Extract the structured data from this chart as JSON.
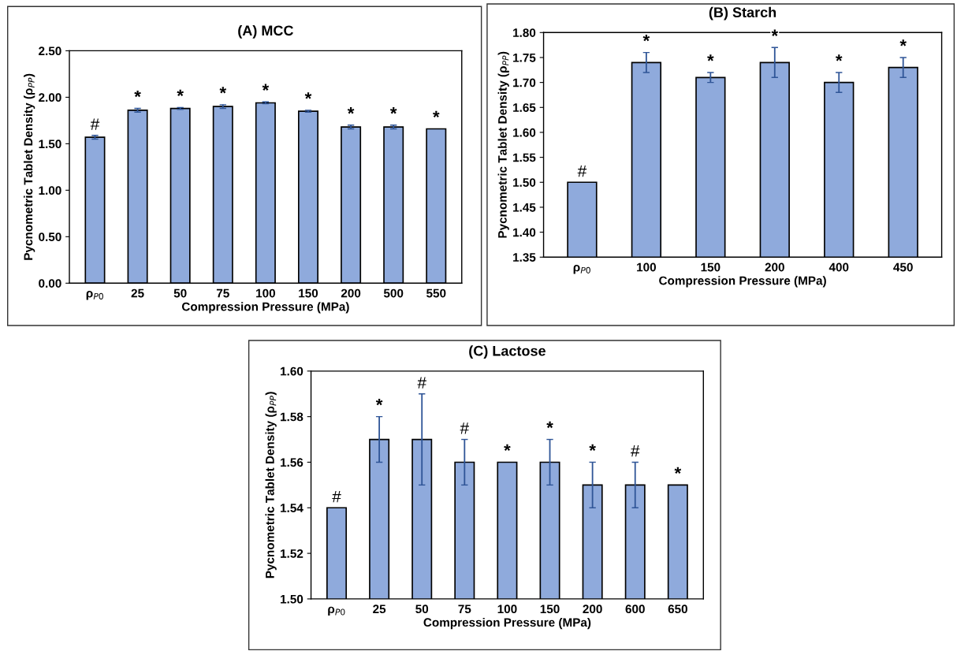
{
  "chart_data": [
    {
      "type": "bar",
      "title": "(A) MCC",
      "xlabel": "Compression Pressure (MPa)",
      "ylabel": "Pycnometric Tablet Density (ρ$_{PP}$)",
      "categories": [
        "ρ$_{P0}$",
        "25",
        "50",
        "75",
        "100",
        "150",
        "200",
        "500",
        "550"
      ],
      "values": [
        1.57,
        1.86,
        1.88,
        1.9,
        1.94,
        1.85,
        1.68,
        1.68,
        1.66
      ],
      "errors": [
        0.02,
        0.02,
        0.01,
        0.02,
        0.01,
        0.01,
        0.02,
        0.02,
        null
      ],
      "color": "#8faadc",
      "ylim": [
        0,
        2.5
      ],
      "yticks": [
        {
          "value": 0,
          "label": "0.00"
        },
        {
          "value": 0.5,
          "label": "0.50"
        },
        {
          "value": 1,
          "label": "1.00"
        },
        {
          "value": 1.5,
          "label": "1.50"
        },
        {
          "value": 2,
          "label": "2.00"
        },
        {
          "value": 2.5,
          "label": "2.50"
        }
      ],
      "grid": false,
      "annotations": [
        {
          "text": "#",
          "x": "ρ$_{P0}$",
          "y": 1.59
        },
        {
          "text": "*",
          "x": "25",
          "y": 1.88
        },
        {
          "text": "*",
          "x": "50",
          "y": 1.89
        },
        {
          "text": "*",
          "x": "75",
          "y": 1.92
        },
        {
          "text": "*",
          "x": "100",
          "y": 1.95
        },
        {
          "text": "*",
          "x": "150",
          "y": 1.86
        },
        {
          "text": "*",
          "x": "200",
          "y": 1.7
        },
        {
          "text": "*",
          "x": "500",
          "y": 1.7
        },
        {
          "text": "*",
          "x": "550",
          "y": 1.66
        }
      ]
    },
    {
      "type": "bar",
      "title": "(B) Starch",
      "xlabel": "Compression Pressure (MPa)",
      "ylabel": "Pycnometric Tablet Density (ρ$_{PP}$)",
      "categories": [
        "ρ$_{P0}$",
        "100",
        "150",
        "200",
        "400",
        "450"
      ],
      "values": [
        1.5,
        1.74,
        1.71,
        1.74,
        1.7,
        1.73
      ],
      "errors": [
        null,
        0.02,
        0.01,
        0.03,
        0.02,
        0.02
      ],
      "color": "#8faadc",
      "ylim": [
        1.35,
        1.8
      ],
      "yticks": [
        {
          "value": 1.35,
          "label": "1.35"
        },
        {
          "value": 1.4,
          "label": "1.40"
        },
        {
          "value": 1.45,
          "label": "1.45"
        },
        {
          "value": 1.5,
          "label": "1.50"
        },
        {
          "value": 1.55,
          "label": "1.55"
        },
        {
          "value": 1.6,
          "label": "1.60"
        },
        {
          "value": 1.65,
          "label": "1.65"
        },
        {
          "value": 1.7,
          "label": "1.70"
        },
        {
          "value": 1.75,
          "label": "1.75"
        },
        {
          "value": 1.8,
          "label": "1.80"
        }
      ],
      "grid": false,
      "annotations": [
        {
          "text": "#",
          "x": "ρ$_{P0}$",
          "y": 1.5
        },
        {
          "text": "*",
          "x": "100",
          "y": 1.76
        },
        {
          "text": "*",
          "x": "150",
          "y": 1.72
        },
        {
          "text": "*",
          "x": "200",
          "y": 1.77
        },
        {
          "text": "*",
          "x": "400",
          "y": 1.72
        },
        {
          "text": "*",
          "x": "450",
          "y": 1.75
        }
      ]
    },
    {
      "type": "bar",
      "title": "(C) Lactose",
      "xlabel": "Compression Pressure (MPa)",
      "ylabel": "Pycnometric Tablet Density (ρ$_{PP}$)",
      "categories": [
        "ρ$_{P0}$",
        "25",
        "50",
        "75",
        "100",
        "150",
        "200",
        "600",
        "650"
      ],
      "values": [
        1.54,
        1.57,
        1.57,
        1.56,
        1.56,
        1.56,
        1.55,
        1.55,
        1.55
      ],
      "errors": [
        null,
        0.01,
        0.02,
        0.01,
        null,
        0.01,
        0.01,
        0.01,
        null
      ],
      "color": "#8faadc",
      "ylim": [
        1.5,
        1.6
      ],
      "yticks": [
        {
          "value": 1.5,
          "label": "1.50"
        },
        {
          "value": 1.52,
          "label": "1.52"
        },
        {
          "value": 1.54,
          "label": "1.54"
        },
        {
          "value": 1.56,
          "label": "1.56"
        },
        {
          "value": 1.58,
          "label": "1.58"
        },
        {
          "value": 1.6,
          "label": "1.60"
        }
      ],
      "grid": false,
      "annotations": [
        {
          "text": "#",
          "x": "ρ$_{P0}$",
          "y": 1.54
        },
        {
          "text": "*",
          "x": "25",
          "y": 1.58
        },
        {
          "text": "#",
          "x": "50",
          "y": 1.59
        },
        {
          "text": "#",
          "x": "75",
          "y": 1.57
        },
        {
          "text": "*",
          "x": "100",
          "y": 1.56
        },
        {
          "text": "*",
          "x": "150",
          "y": 1.57
        },
        {
          "text": "*",
          "x": "200",
          "y": 1.56
        },
        {
          "text": "#",
          "x": "600",
          "y": 1.56
        },
        {
          "text": "*",
          "x": "650",
          "y": 1.55
        }
      ]
    }
  ]
}
